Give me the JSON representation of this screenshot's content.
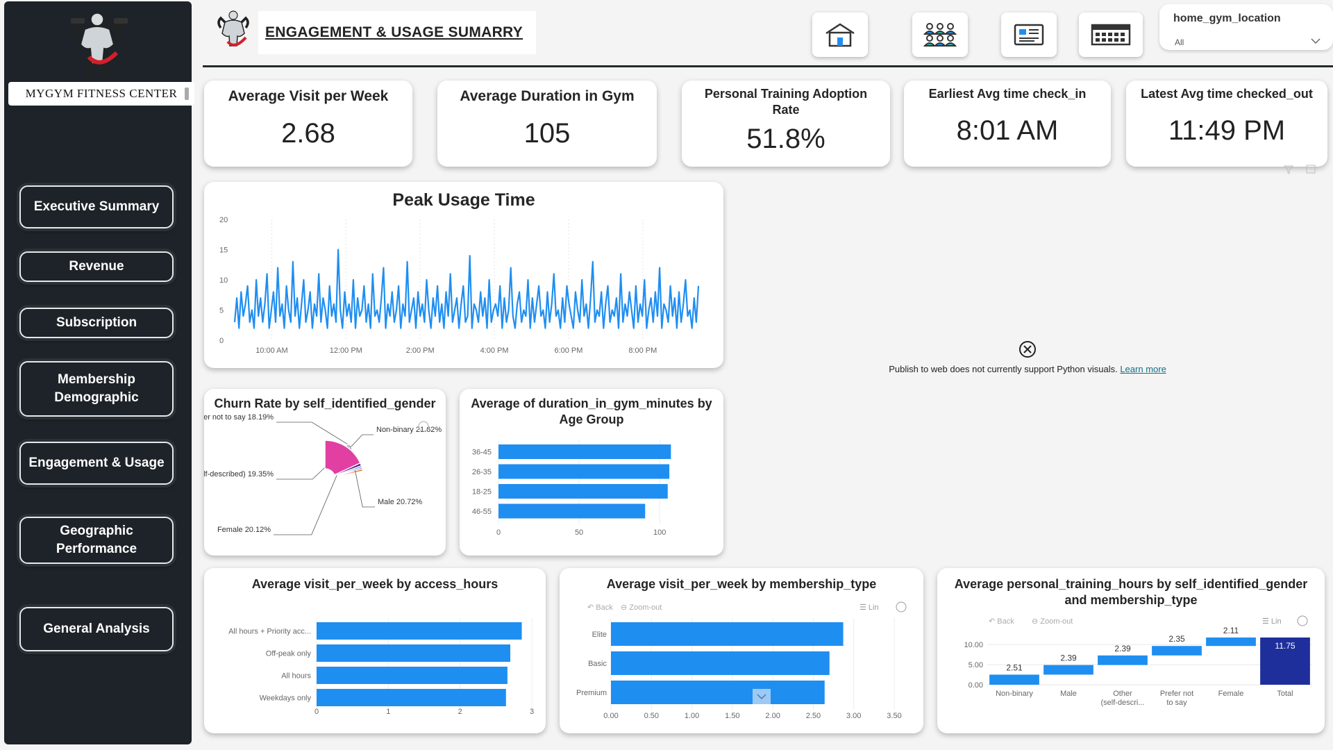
{
  "sidebar": {
    "brand": "MYGYM FITNESS CENTER",
    "nav": [
      {
        "label": "Executive Summary"
      },
      {
        "label": "Revenue"
      },
      {
        "label": "Subscription"
      },
      {
        "label": "Membership Demographic"
      },
      {
        "label": "Engagement & Usage"
      },
      {
        "label": "Geographic Performance"
      },
      {
        "label": "General Analysis"
      }
    ]
  },
  "header": {
    "title": "ENGAGEMENT & USAGE SUMARRY",
    "icons": [
      "home-icon",
      "people-icon",
      "report-icon",
      "calendar-icon"
    ],
    "slicer": {
      "title": "home_gym_location",
      "value": "All"
    }
  },
  "kpis": [
    {
      "title": "Average Visit per Week",
      "value": "2.68"
    },
    {
      "title": "Average Duration in Gym",
      "value": "105"
    },
    {
      "title": "Personal Training Adoption Rate",
      "value": "51.8%"
    },
    {
      "title": "Earliest Avg time check_in",
      "value": "8:01 AM"
    },
    {
      "title": "Latest Avg time checked_out",
      "value": "11:49 PM"
    }
  ],
  "python_notice": {
    "text": "Publish to web does not currently support Python visuals.",
    "link": "Learn more"
  },
  "colors": {
    "primary": "#1f8ef1",
    "sidebar": "#1d2328",
    "dark_blue": "#1e2f9c"
  },
  "chart_data": [
    {
      "type": "line",
      "title": "Peak Usage Time",
      "x_ticks": [
        "10:00 AM",
        "12:00 PM",
        "2:00 PM",
        "4:00 PM",
        "6:00 PM",
        "8:00 PM"
      ],
      "y_ticks": [
        "0",
        "5",
        "10",
        "15",
        "20"
      ],
      "ylim": [
        0,
        20
      ],
      "x_range_hours": [
        9.0,
        21.5
      ],
      "values": [
        3,
        7,
        2,
        8,
        4,
        6,
        9,
        3,
        5,
        2,
        10,
        4,
        7,
        3,
        6,
        11,
        2,
        5,
        8,
        3,
        12,
        4,
        6,
        2,
        9,
        5,
        3,
        13,
        4,
        7,
        2,
        6,
        10,
        3,
        5,
        8,
        2,
        6,
        4,
        11,
        3,
        7,
        5,
        2,
        9,
        4,
        6,
        3,
        15,
        5,
        2,
        8,
        4,
        6,
        3,
        10,
        2,
        7,
        4,
        5,
        9,
        3,
        6,
        2,
        11,
        4,
        5,
        3,
        7,
        12,
        2,
        6,
        4,
        8,
        3,
        5,
        9,
        2,
        6,
        4,
        13,
        3,
        5,
        7,
        2,
        8,
        4,
        6,
        3,
        10,
        5,
        2,
        7,
        4,
        9,
        3,
        6,
        2,
        8,
        4,
        11,
        3,
        5,
        7,
        2,
        6,
        9,
        3,
        4,
        14,
        2,
        6,
        5,
        3,
        8,
        4,
        7,
        2,
        10,
        3,
        5,
        6,
        4,
        9,
        2,
        7,
        3,
        5,
        12,
        4,
        2,
        6,
        8,
        3,
        5,
        4,
        10,
        2,
        7,
        3,
        6,
        9,
        4,
        5,
        2,
        8,
        3,
        6,
        11,
        4,
        5,
        2,
        7,
        3,
        9,
        6,
        4,
        2,
        8,
        5,
        3,
        10,
        4,
        6,
        2,
        7,
        13,
        3,
        5,
        4,
        8,
        2,
        6,
        9,
        3,
        5,
        4,
        7,
        2,
        11,
        3,
        6,
        4,
        8,
        5,
        2,
        9,
        3,
        6,
        4,
        10,
        2,
        5,
        7,
        3,
        8,
        4,
        12,
        2,
        6,
        5,
        3,
        9,
        4,
        7,
        2,
        8,
        3,
        6,
        10,
        4,
        5,
        2,
        7,
        3,
        9
      ]
    },
    {
      "type": "pie",
      "title": "Churn Rate by self_identified_gender",
      "slices": [
        {
          "label": "Non-binary",
          "value": 21.62,
          "color": "#ee6e2c"
        },
        {
          "label": "Male",
          "value": 20.72,
          "color": "#1a2f9e"
        },
        {
          "label": "Female",
          "value": 20.12,
          "color": "#2b8ff0"
        },
        {
          "label": "Other (self-described)",
          "value": 19.35,
          "color": "#6a0f80"
        },
        {
          "label": "Prefer not to say",
          "value": 18.19,
          "color": "#e23fa3"
        }
      ]
    },
    {
      "type": "bar",
      "title": "Average of duration_in_gym_minutes by Age Group",
      "categories": [
        "36-45",
        "26-35",
        "18-25",
        "46-55"
      ],
      "values": [
        107,
        106,
        105,
        91
      ],
      "x_ticks": [
        "0",
        "50",
        "100"
      ],
      "xlim": [
        0,
        112
      ]
    },
    {
      "type": "bar",
      "title": "Average visit_per_week by access_hours",
      "categories": [
        "All hours + Priority acc...",
        "Off-peak only",
        "All hours",
        "Weekdays only"
      ],
      "values": [
        2.86,
        2.7,
        2.66,
        2.64
      ],
      "x_ticks": [
        "0",
        "1",
        "2",
        "3"
      ],
      "xlim": [
        0,
        3
      ]
    },
    {
      "type": "bar",
      "title": "Average visit_per_week by membership_type",
      "categories": [
        "Elite",
        "Basic",
        "Premium"
      ],
      "values": [
        2.87,
        2.7,
        2.64
      ],
      "x_ticks": [
        "0.00",
        "0.50",
        "1.00",
        "1.50",
        "2.00",
        "2.50",
        "3.00",
        "3.50"
      ],
      "xlim": [
        0,
        3.5
      ],
      "toolbar": {
        "back": "Back",
        "zoom": "Zoom-out",
        "lin": "Lin"
      }
    },
    {
      "type": "waterfall",
      "title": "Average personal_training_hours by self_identified_gender and membership_type",
      "categories": [
        "Non-binary",
        "Male",
        "Other (self-descri...",
        "Prefer not to say",
        "Female",
        "Total"
      ],
      "values": [
        2.51,
        2.39,
        2.39,
        2.35,
        2.11,
        11.75
      ],
      "y_ticks": [
        "0.00",
        "5.00",
        "10.00"
      ],
      "ylim": [
        0,
        11.75
      ],
      "toolbar": {
        "back": "Back",
        "zoom": "Zoom-out",
        "lin": "Lin"
      }
    }
  ]
}
